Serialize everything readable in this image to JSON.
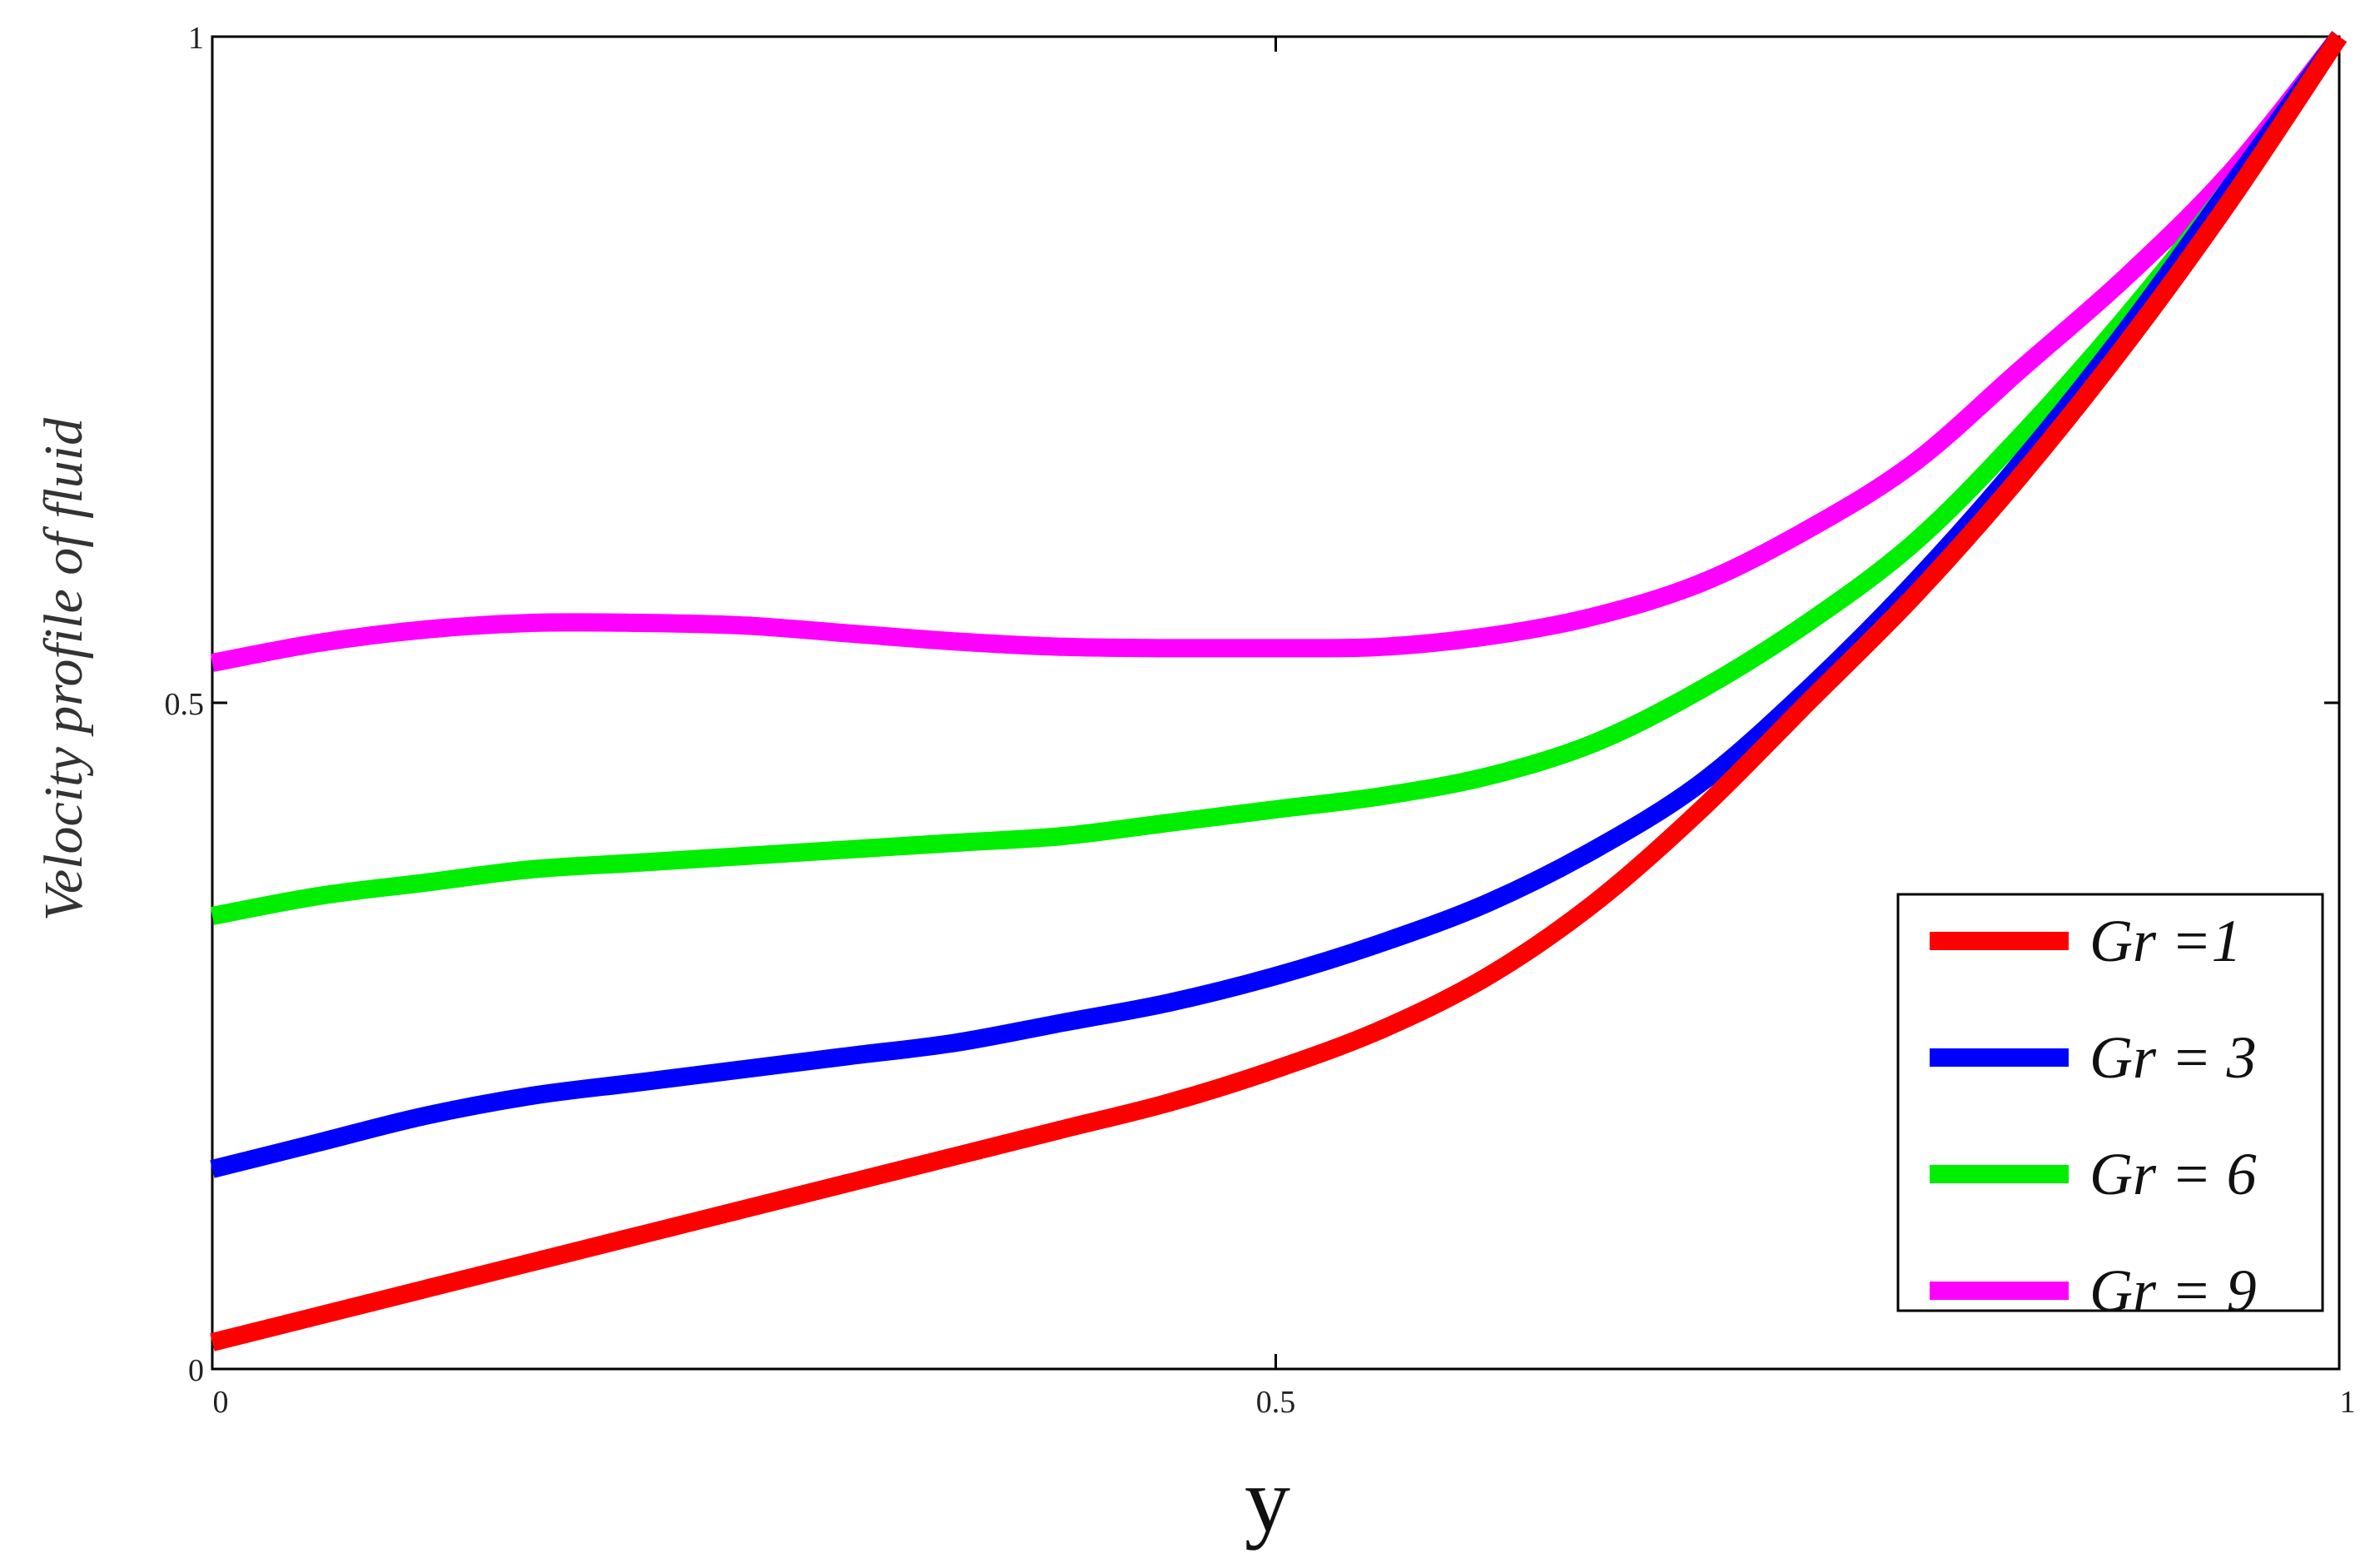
{
  "chart_data": {
    "type": "line",
    "xlabel": "y",
    "ylabel": "Velocity profile of  fluid",
    "xlim": [
      0,
      1
    ],
    "ylim": [
      0,
      1
    ],
    "xticks": [
      "0",
      "0.5",
      "1"
    ],
    "yticks": [
      "0",
      "0.5",
      "1"
    ],
    "grid": false,
    "legend_position": "bottom-right",
    "x": [
      0,
      0.05,
      0.1,
      0.15,
      0.2,
      0.25,
      0.3,
      0.35,
      0.4,
      0.45,
      0.5,
      0.55,
      0.6,
      0.65,
      0.7,
      0.75,
      0.8,
      0.85,
      0.9,
      0.95,
      1.0
    ],
    "series": [
      {
        "name": "Gr =1",
        "color": "#ff0000",
        "values": [
          0.02,
          0.04,
          0.06,
          0.08,
          0.1,
          0.12,
          0.14,
          0.16,
          0.18,
          0.2,
          0.225,
          0.255,
          0.295,
          0.35,
          0.42,
          0.5,
          0.58,
          0.67,
          0.77,
          0.88,
          1.0
        ]
      },
      {
        "name": "Gr = 3",
        "color": "#0000ff",
        "values": [
          0.15,
          0.17,
          0.19,
          0.205,
          0.215,
          0.225,
          0.235,
          0.245,
          0.26,
          0.275,
          0.295,
          0.32,
          0.35,
          0.39,
          0.44,
          0.51,
          0.59,
          0.68,
          0.78,
          0.89,
          1.0
        ]
      },
      {
        "name": "Gr = 6",
        "color": "#00ee00",
        "values": [
          0.34,
          0.355,
          0.365,
          0.375,
          0.38,
          0.385,
          0.39,
          0.395,
          0.4,
          0.41,
          0.42,
          0.43,
          0.445,
          0.47,
          0.51,
          0.56,
          0.62,
          0.7,
          0.79,
          0.89,
          1.0
        ]
      },
      {
        "name": "Gr = 9",
        "color": "#ff00ff",
        "values": [
          0.53,
          0.545,
          0.555,
          0.56,
          0.56,
          0.558,
          0.552,
          0.546,
          0.542,
          0.541,
          0.541,
          0.542,
          0.55,
          0.565,
          0.59,
          0.63,
          0.68,
          0.75,
          0.82,
          0.9,
          1.0
        ]
      }
    ]
  }
}
